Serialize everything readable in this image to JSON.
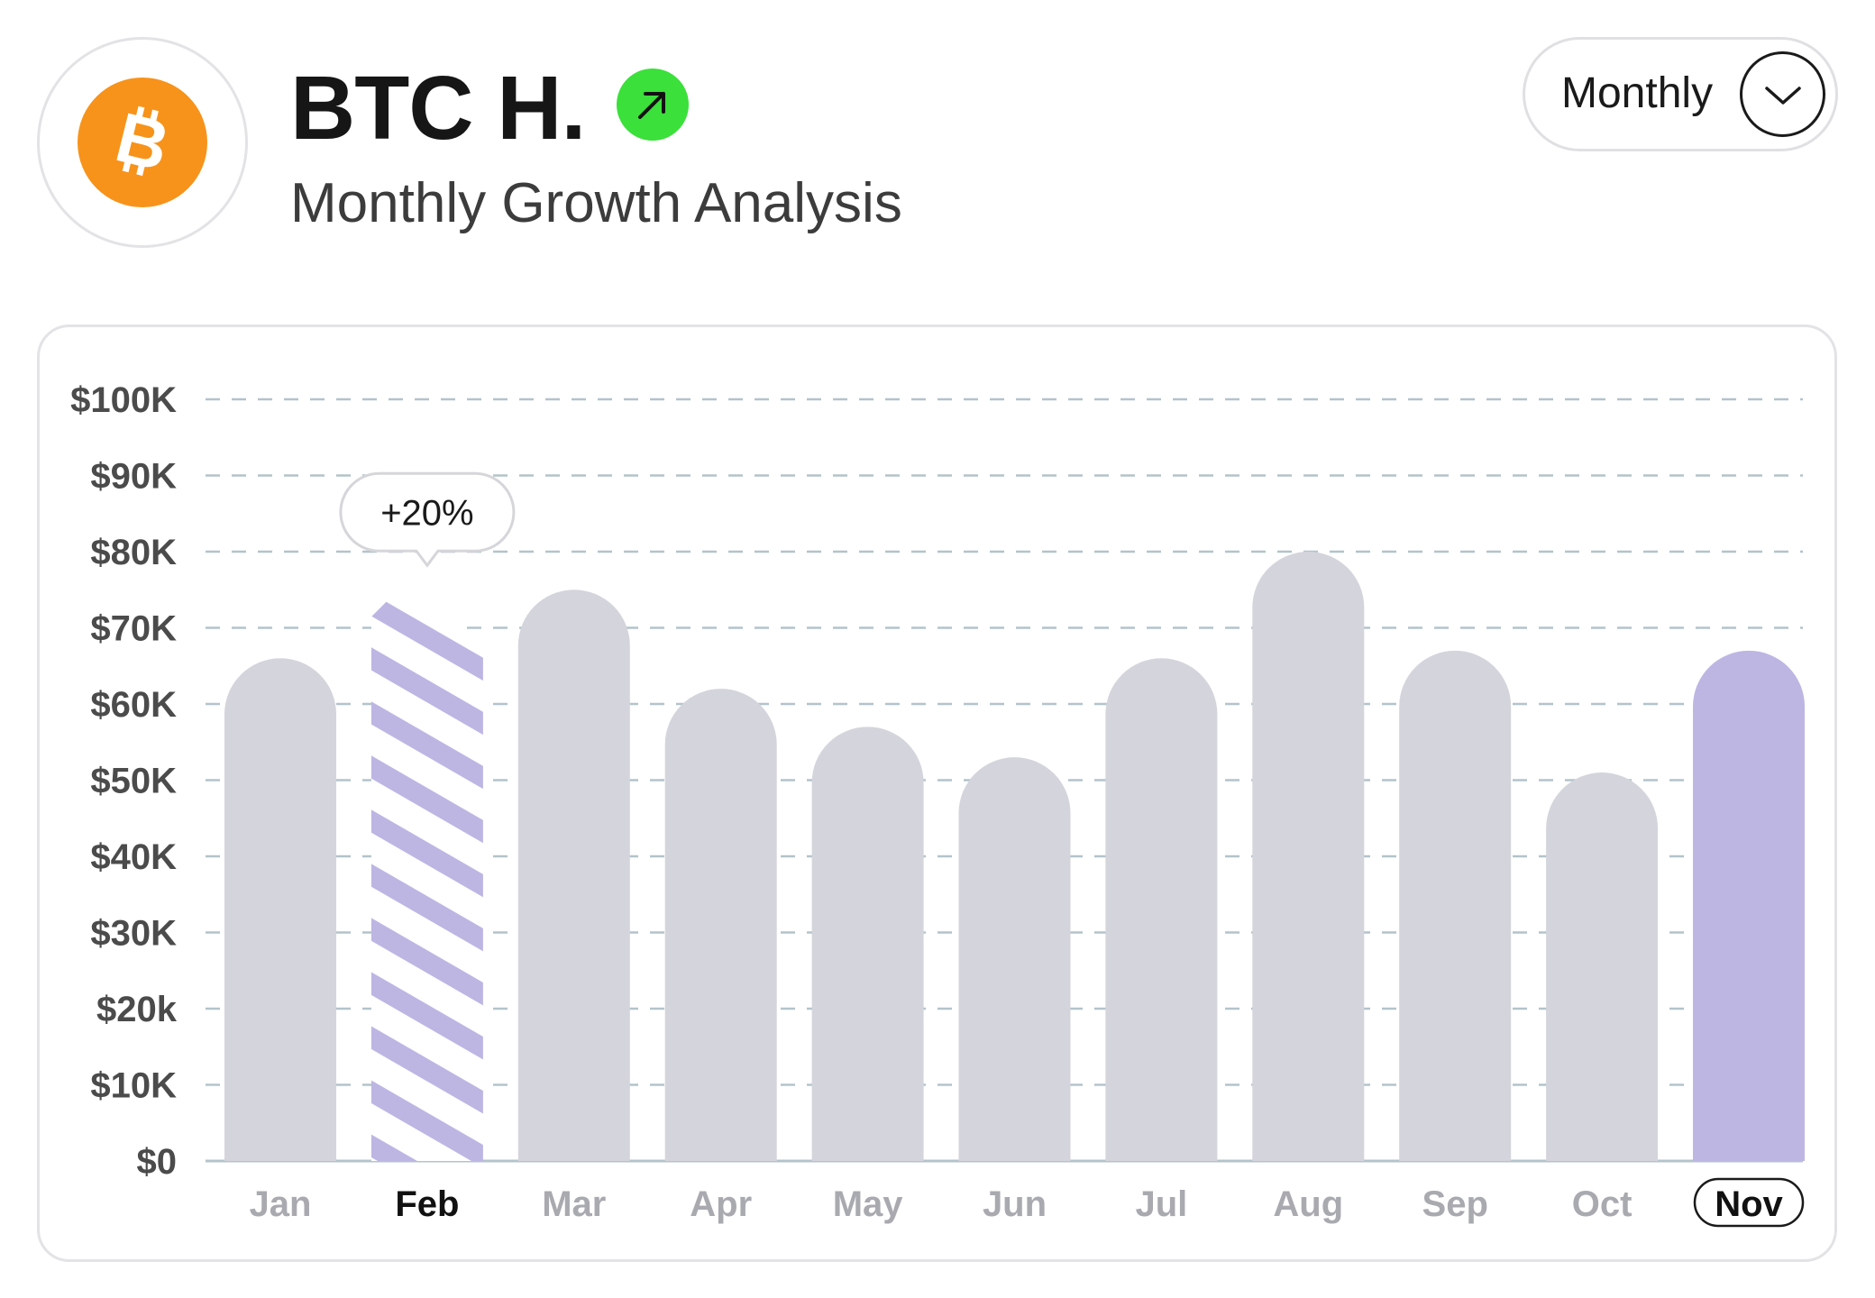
{
  "header": {
    "title": "BTC H.",
    "subtitle": "Monthly Growth Analysis",
    "coin_icon": "bitcoin-icon",
    "trend_icon": "arrow-up-right-icon",
    "period_label": "Monthly",
    "period_icon": "chevron-down-icon"
  },
  "colors": {
    "coin": "#f7931a",
    "trend_badge": "#3be03b",
    "bar_default": "#d4d4dc",
    "bar_highlight": "#bdb6e3",
    "gridline": "#b4c3cb"
  },
  "chart_data": {
    "type": "bar",
    "categories": [
      "Jan",
      "Feb",
      "Mar",
      "Apr",
      "May",
      "Jun",
      "Jul",
      "Aug",
      "Sep",
      "Oct",
      "Nov"
    ],
    "values": [
      66000,
      75000,
      75000,
      62000,
      57000,
      53000,
      66000,
      80000,
      67000,
      51000,
      67000
    ],
    "y_tick_labels": [
      "$0",
      "$10K",
      "$20k",
      "$30K",
      "$40K",
      "$50K",
      "$60K",
      "$70K",
      "$80K",
      "$90K",
      "$100K"
    ],
    "ylim": [
      0,
      100000
    ],
    "grid": true,
    "title": "",
    "xlabel": "",
    "ylabel": "",
    "hovered_category": "Feb",
    "hovered_style": "hatched",
    "tooltip": "+20%",
    "selected_category": "Nov",
    "selected_style": "filled-highlight"
  }
}
